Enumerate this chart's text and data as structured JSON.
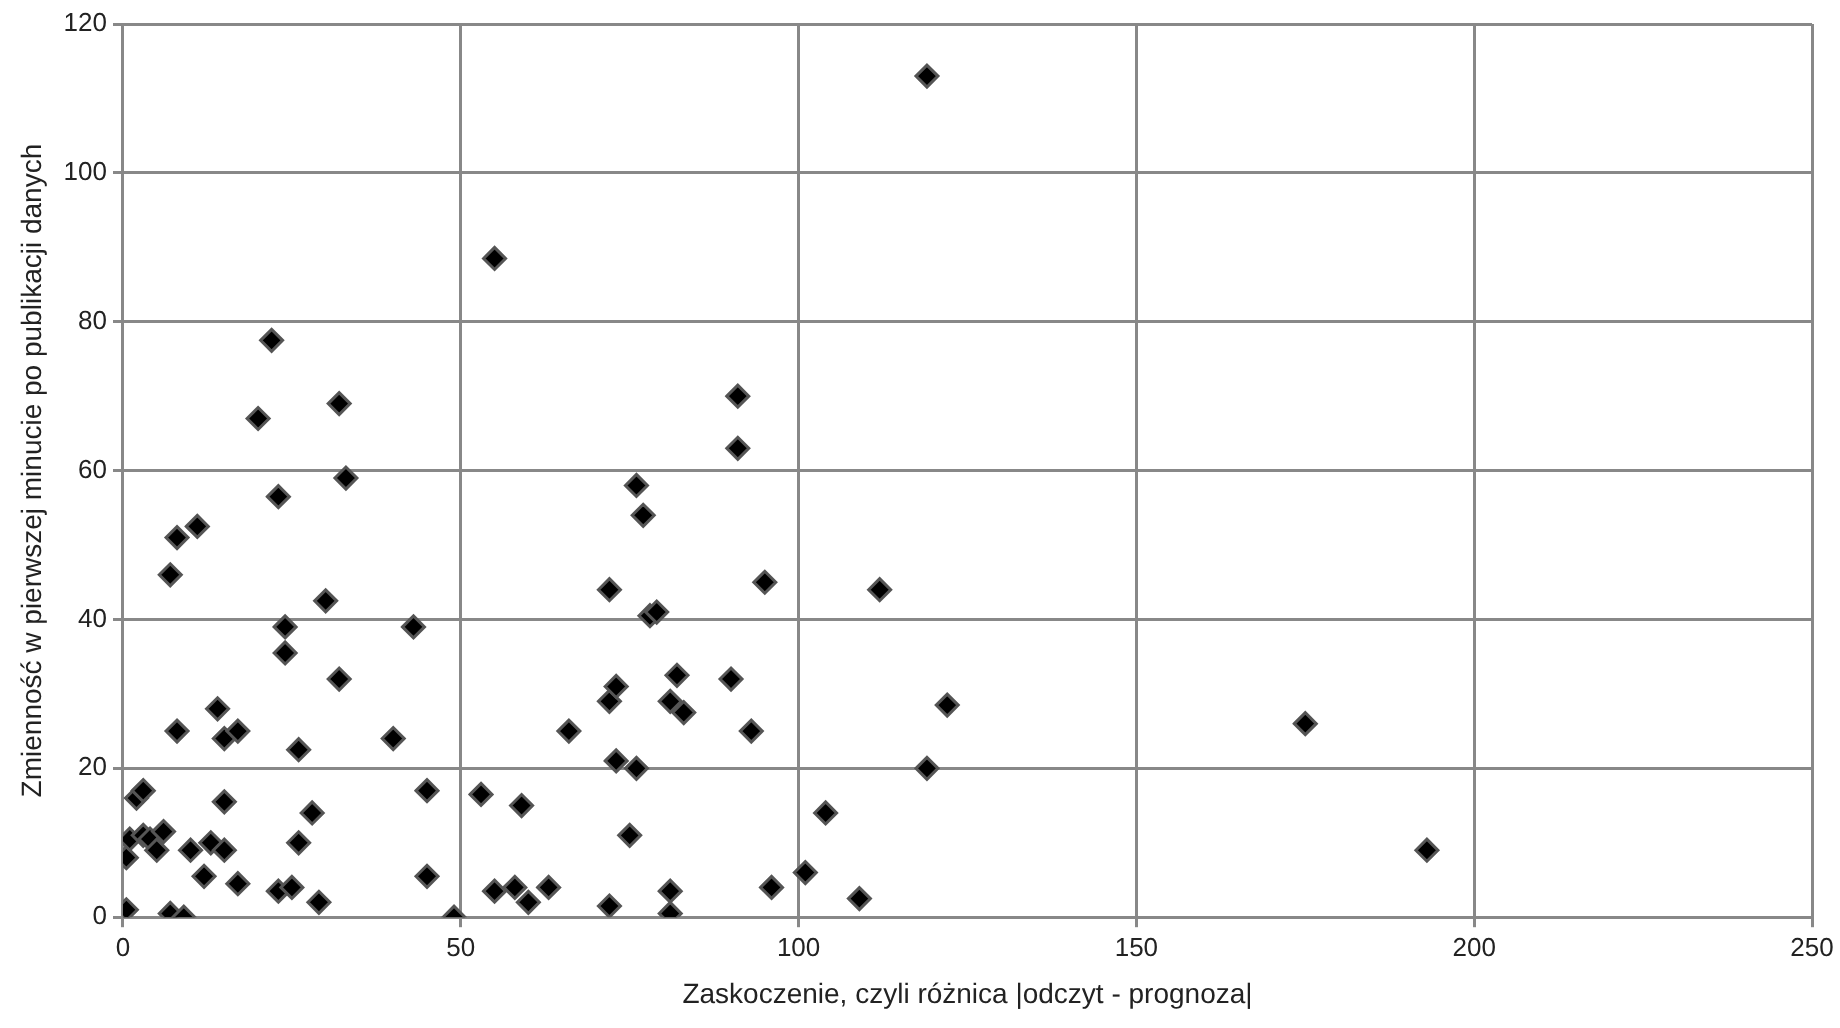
{
  "chart_data": {
    "type": "scatter",
    "xlabel": "Zaskoczenie, czyli różnica |odczyt - prognoza|",
    "ylabel": "Zmienność w pierwszej minucie po publikacji danych",
    "marker": "diamond",
    "grid": true,
    "legend": false,
    "xlim": [
      0,
      250
    ],
    "xticks": [
      0,
      50,
      100,
      150,
      200,
      250
    ],
    "ylim": [
      0,
      120
    ],
    "yticks": [
      0,
      20,
      40,
      60,
      80,
      100,
      120
    ],
    "series": [
      {
        "color": "#000000",
        "x": [
          0.5,
          0.5,
          1,
          2,
          3,
          3,
          4,
          5,
          6,
          7,
          7,
          8,
          8,
          9,
          10,
          11,
          12,
          13,
          14,
          15,
          15,
          15,
          17,
          17,
          20,
          22,
          23,
          23,
          24,
          24,
          25,
          26,
          26,
          28,
          29,
          30,
          32,
          32,
          33,
          40,
          43,
          45,
          45,
          49,
          53,
          55,
          55,
          58,
          59,
          60,
          63,
          66,
          72,
          72,
          72,
          73,
          73,
          75,
          76,
          76,
          77,
          78,
          79,
          81,
          81,
          81,
          82,
          83,
          90,
          91,
          91,
          93,
          95,
          96,
          101,
          104,
          109,
          112,
          119,
          119,
          122,
          175,
          193
        ],
        "values": [
          1,
          8,
          10.5,
          16,
          17,
          11,
          10.5,
          9,
          11.5,
          0.5,
          46,
          51,
          25,
          0,
          9,
          52.5,
          5.5,
          10,
          28,
          24,
          15.5,
          9,
          4.5,
          25,
          67,
          77.5,
          56.5,
          3.5,
          39,
          35.5,
          4,
          10,
          22.5,
          14,
          2,
          42.5,
          69,
          32,
          59,
          24,
          39,
          17,
          5.5,
          0,
          16.5,
          88.5,
          3.5,
          4,
          15,
          2,
          4,
          25,
          44,
          29,
          1.5,
          31,
          21,
          11,
          58,
          20,
          54,
          40.5,
          41,
          29,
          3.5,
          0.5,
          32.5,
          27.5,
          32,
          70,
          63,
          25,
          45,
          4,
          6,
          14,
          2.5,
          44,
          113,
          20,
          28.5,
          26,
          9
        ]
      }
    ]
  }
}
